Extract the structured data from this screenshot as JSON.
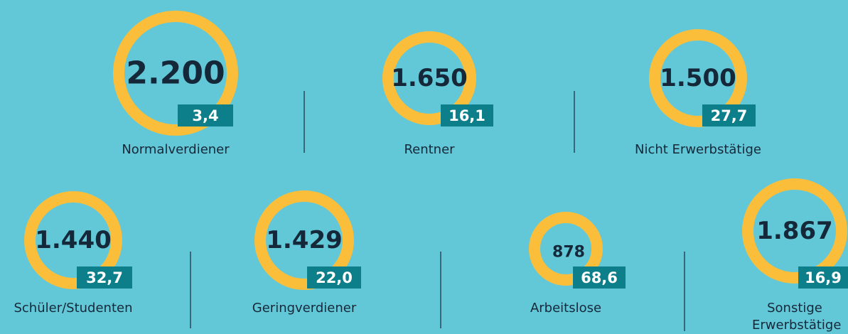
{
  "items": [
    {
      "value": "2.200",
      "badge": "3,4",
      "label": "Normalverdiener"
    },
    {
      "value": "1.650",
      "badge": "16,1",
      "label": "Rentner"
    },
    {
      "value": "1.500",
      "badge": "27,7",
      "label": "Nicht Erwerbstätige"
    },
    {
      "value": "1.440",
      "badge": "32,7",
      "label": "Schüler/Studenten"
    },
    {
      "value": "1.429",
      "badge": "22,0",
      "label": "Geringverdiener"
    },
    {
      "value": "878",
      "badge": "68,6",
      "label": "Arbeitslose"
    },
    {
      "value": "1.867",
      "badge": "16,9",
      "label": "Sonstige Erwerbstätige"
    }
  ]
}
